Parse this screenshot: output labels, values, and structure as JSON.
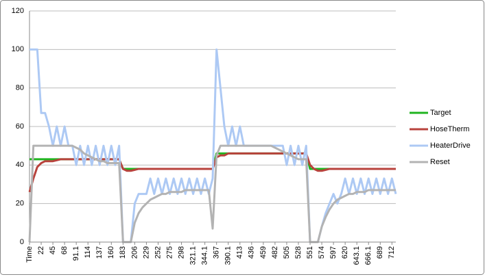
{
  "chart_data": {
    "type": "line",
    "categories": [
      "Time",
      null,
      null,
      "22",
      null,
      null,
      "45",
      null,
      null,
      "68",
      null,
      null,
      "91.1",
      null,
      null,
      "114",
      null,
      null,
      "137",
      null,
      null,
      "160",
      null,
      null,
      "183",
      null,
      null,
      "206",
      null,
      null,
      "229",
      null,
      null,
      "252",
      null,
      null,
      "275",
      null,
      null,
      "298",
      null,
      null,
      "321.1",
      null,
      null,
      "344.1",
      null,
      null,
      "367",
      null,
      null,
      "390.1",
      null,
      null,
      "413",
      null,
      null,
      "436",
      null,
      null,
      "459",
      null,
      null,
      "482",
      null,
      null,
      "505",
      null,
      null,
      "528",
      null,
      null,
      "551",
      null,
      null,
      "574",
      null,
      null,
      "597",
      null,
      null,
      "620",
      null,
      null,
      "643.1",
      null,
      null,
      "666.1",
      null,
      null,
      "689",
      null,
      null,
      "712",
      null
    ],
    "series": [
      {
        "name": "Target",
        "color": "#1fb41f",
        "values": [
          43,
          43,
          43,
          43,
          43,
          43,
          43,
          43,
          43,
          43,
          43,
          43,
          43,
          43,
          43,
          43,
          43,
          43,
          43,
          43,
          43,
          43,
          43,
          43,
          38,
          38,
          38,
          38,
          38,
          38,
          38,
          38,
          38,
          38,
          38,
          38,
          38,
          38,
          38,
          38,
          38,
          38,
          38,
          38,
          38,
          38,
          38,
          38,
          46,
          46,
          46,
          46,
          46,
          46,
          46,
          46,
          46,
          46,
          46,
          46,
          46,
          46,
          46,
          46,
          46,
          46,
          46,
          46,
          46,
          46,
          46,
          46,
          38,
          38,
          38,
          38,
          38,
          38,
          38,
          38,
          38,
          38,
          38,
          38,
          38,
          38,
          38,
          38,
          38,
          38,
          38,
          38,
          38,
          38,
          38
        ]
      },
      {
        "name": "HoseTherm",
        "color": "#b8423c",
        "values": [
          26,
          33,
          39,
          41,
          42,
          42,
          42,
          42.5,
          43,
          43,
          43,
          43,
          43,
          43,
          43,
          43,
          43,
          43,
          43,
          43,
          43,
          43,
          43,
          43,
          38,
          37,
          37,
          37.5,
          38,
          38,
          38,
          38,
          38,
          38,
          38,
          38,
          38,
          38,
          38,
          38,
          38,
          38,
          38,
          38,
          38,
          38,
          38,
          38,
          44,
          45,
          45,
          46,
          46,
          46,
          46,
          46,
          46,
          46,
          46,
          46,
          46,
          46,
          46,
          46,
          46,
          46,
          46,
          46,
          46,
          46,
          46,
          46,
          40,
          38,
          37,
          37,
          37.5,
          38,
          38,
          38,
          38,
          38,
          38,
          38,
          38,
          38,
          38,
          38,
          38,
          38,
          38,
          38,
          38,
          38,
          38
        ]
      },
      {
        "name": "HeaterDrive",
        "color": "#adc9f4",
        "values": [
          100,
          100,
          100,
          67,
          67,
          60,
          50,
          60,
          50,
          60,
          50,
          50,
          40,
          50,
          40,
          50,
          40,
          50,
          40,
          50,
          40,
          50,
          40,
          50,
          0,
          0,
          0,
          20,
          25,
          25,
          25,
          33,
          25,
          33,
          25,
          33,
          25,
          33,
          25,
          33,
          25,
          33,
          25,
          33,
          25,
          33,
          25,
          33,
          100,
          80,
          60,
          50,
          60,
          50,
          60,
          50,
          50,
          50,
          50,
          50,
          50,
          50,
          50,
          50,
          50,
          50,
          40,
          50,
          40,
          50,
          40,
          50,
          0,
          0,
          0,
          8,
          15,
          20,
          25,
          20,
          25,
          33,
          25,
          33,
          25,
          33,
          25,
          33,
          25,
          33,
          25,
          33,
          25,
          33,
          25
        ]
      },
      {
        "name": "Reset",
        "color": "#b3b3b3",
        "values": [
          0,
          50,
          50,
          50,
          50,
          50,
          50,
          50,
          50,
          50,
          50,
          50,
          49,
          48,
          46,
          45,
          44,
          43,
          42,
          42,
          41,
          41,
          41,
          41,
          0,
          0,
          0,
          10,
          15,
          18,
          20,
          22,
          23,
          24,
          25,
          25,
          26,
          26,
          26,
          26,
          27,
          27,
          27,
          27,
          27,
          27,
          27,
          7,
          45,
          50,
          50,
          50,
          50,
          50,
          50,
          50,
          50,
          50,
          50,
          50,
          50,
          50,
          50,
          49,
          48,
          47,
          46,
          45,
          44,
          43,
          43,
          43,
          0,
          0,
          0,
          8,
          13,
          17,
          20,
          22,
          23,
          24,
          25,
          25,
          26,
          26,
          26,
          27,
          27,
          27,
          27,
          27,
          27,
          27,
          27
        ]
      }
    ],
    "ylim": [
      0,
      120
    ],
    "yticks": [
      0,
      20,
      40,
      60,
      80,
      100,
      120
    ],
    "grid": true,
    "legend": "right"
  }
}
